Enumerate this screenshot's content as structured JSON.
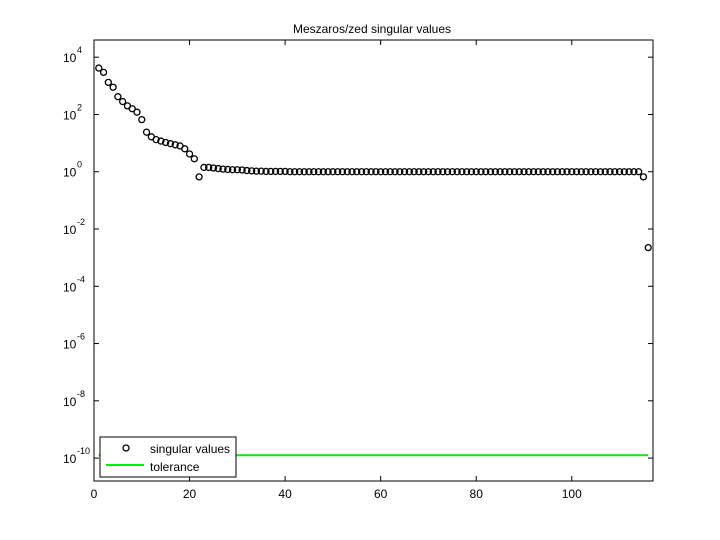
{
  "chart_data": {
    "type": "scatter",
    "title": "Meszaros/zed singular values",
    "xlabel": "",
    "ylabel": "",
    "xlim": [
      0,
      117
    ],
    "ylim_log10": [
      -10.8,
      4.6
    ],
    "yscale": "log",
    "grid": false,
    "legend_position": "bottom-left",
    "x_ticks": [
      {
        "value": 0,
        "label": "0"
      },
      {
        "value": 20,
        "label": "20"
      },
      {
        "value": 40,
        "label": "40"
      },
      {
        "value": 60,
        "label": "60"
      },
      {
        "value": 80,
        "label": "80"
      },
      {
        "value": 100,
        "label": "100"
      }
    ],
    "y_ticks": [
      {
        "exp": 4,
        "base": "10",
        "sup": "4"
      },
      {
        "exp": 2,
        "base": "10",
        "sup": "2"
      },
      {
        "exp": 0,
        "base": "10",
        "sup": "0"
      },
      {
        "exp": -2,
        "base": "10",
        "sup": "-2"
      },
      {
        "exp": -4,
        "base": "10",
        "sup": "-4"
      },
      {
        "exp": -6,
        "base": "10",
        "sup": "-6"
      },
      {
        "exp": -8,
        "base": "10",
        "sup": "-8"
      },
      {
        "exp": -10,
        "base": "10",
        "sup": "-10"
      }
    ],
    "series": [
      {
        "name": "singular values",
        "marker": "circle",
        "color": "#000000",
        "log10_values": [
          3.62,
          3.47,
          3.12,
          2.95,
          2.62,
          2.45,
          2.3,
          2.2,
          2.08,
          1.82,
          1.38,
          1.22,
          1.12,
          1.07,
          1.02,
          0.98,
          0.94,
          0.9,
          0.8,
          0.62,
          0.45,
          -0.18,
          0.15,
          0.15,
          0.13,
          0.11,
          0.09,
          0.08,
          0.07,
          0.07,
          0.06,
          0.04,
          0.03,
          0.02,
          0.02,
          0.01,
          0.01,
          0.01,
          0.01,
          0.01,
          0.0,
          0.0,
          0.0,
          0.0,
          0.0,
          0.0,
          0.0,
          0.0,
          0.0,
          0.0,
          0.0,
          0.0,
          0.0,
          0.0,
          0.0,
          0.0,
          0.0,
          0.0,
          0.0,
          0.0,
          0.0,
          0.0,
          0.0,
          0.0,
          0.0,
          0.0,
          0.0,
          0.0,
          0.0,
          0.0,
          0.0,
          0.0,
          0.0,
          0.0,
          0.0,
          0.0,
          0.0,
          0.0,
          0.0,
          0.0,
          0.0,
          0.0,
          0.0,
          0.0,
          0.0,
          0.0,
          0.0,
          0.0,
          0.0,
          0.0,
          0.0,
          0.0,
          0.0,
          0.0,
          0.0,
          0.0,
          0.0,
          0.0,
          0.0,
          0.0,
          0.0,
          0.0,
          0.0,
          0.0,
          0.0,
          0.0,
          0.0,
          0.0,
          0.0,
          0.0,
          0.0,
          0.0,
          0.0,
          0.0,
          -0.18,
          -2.65
        ]
      },
      {
        "name": "tolerance",
        "marker": "line",
        "color": "#00ee00",
        "x": [
          1,
          116
        ],
        "log10_values": [
          -9.9,
          -9.9
        ]
      }
    ]
  }
}
